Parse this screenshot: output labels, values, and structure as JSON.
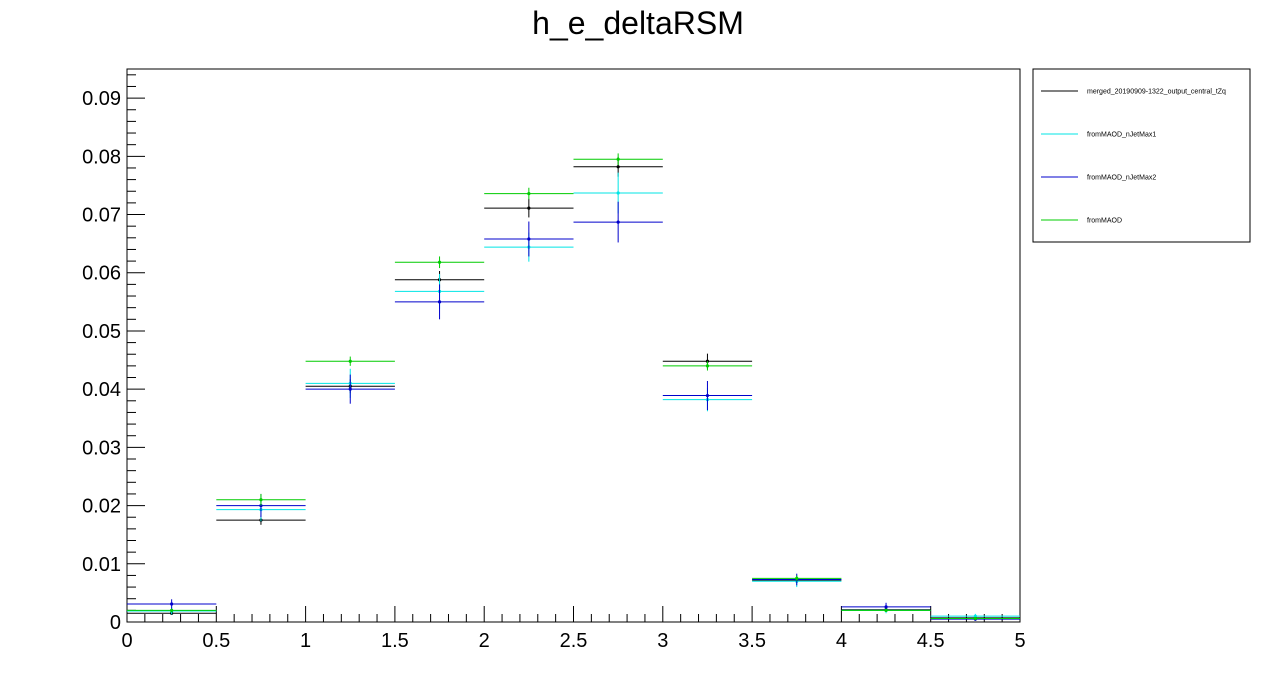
{
  "chart_data": {
    "type": "scatter",
    "title": "h_e_deltaRSM",
    "xlabel": "",
    "ylabel": "",
    "xlim": [
      0,
      5
    ],
    "ylim": [
      0,
      0.095
    ],
    "bin_edges": [
      0,
      0.5,
      1,
      1.5,
      2,
      2.5,
      3,
      3.5,
      4,
      4.5,
      5
    ],
    "x_ticks": [
      "0",
      "0.5",
      "1",
      "1.5",
      "2",
      "2.5",
      "3",
      "3.5",
      "4",
      "4.5",
      "5"
    ],
    "y_ticks": [
      "0",
      "0.01",
      "0.02",
      "0.03",
      "0.04",
      "0.05",
      "0.06",
      "0.07",
      "0.08",
      "0.09"
    ],
    "grid": false,
    "legend_position": "top-right, outside plot",
    "series": [
      {
        "name": "merged_20190909-1322_output_central_tZq",
        "color": "#000000",
        "values": [
          0.0015,
          0.0175,
          0.0405,
          0.0588,
          0.0711,
          0.0782,
          0.0448,
          0.0072,
          0.0021,
          0.0007
        ],
        "errors": [
          0.0003,
          0.0008,
          0.0012,
          0.0015,
          0.0016,
          0.0017,
          0.0013,
          0.0005,
          0.0003,
          0.0002
        ]
      },
      {
        "name": "fromMAOD_nJetMax1",
        "color": "#00e5e5",
        "values": [
          0.0019,
          0.0193,
          0.041,
          0.0568,
          0.0644,
          0.0737,
          0.0382,
          0.007,
          0.002,
          0.001
        ],
        "errors": [
          0.0006,
          0.002,
          0.0025,
          0.003,
          0.0025,
          0.0035,
          0.002,
          0.001,
          0.0005,
          0.0004
        ]
      },
      {
        "name": "fromMAOD_nJetMax2",
        "color": "#0000cc",
        "values": [
          0.0031,
          0.02,
          0.04,
          0.055,
          0.0658,
          0.0687,
          0.0389,
          0.0073,
          0.0026,
          0.0005
        ],
        "errors": [
          0.0008,
          0.002,
          0.0025,
          0.003,
          0.003,
          0.0035,
          0.0025,
          0.001,
          0.0007,
          0.0003
        ]
      },
      {
        "name": "fromMAOD",
        "color": "#00cc00",
        "values": [
          0.002,
          0.021,
          0.0448,
          0.0618,
          0.0736,
          0.0795,
          0.044,
          0.0075,
          0.002,
          0.0006
        ],
        "errors": [
          0.0003,
          0.001,
          0.0008,
          0.001,
          0.001,
          0.001,
          0.0008,
          0.0005,
          0.0002,
          0.0002
        ]
      }
    ]
  }
}
